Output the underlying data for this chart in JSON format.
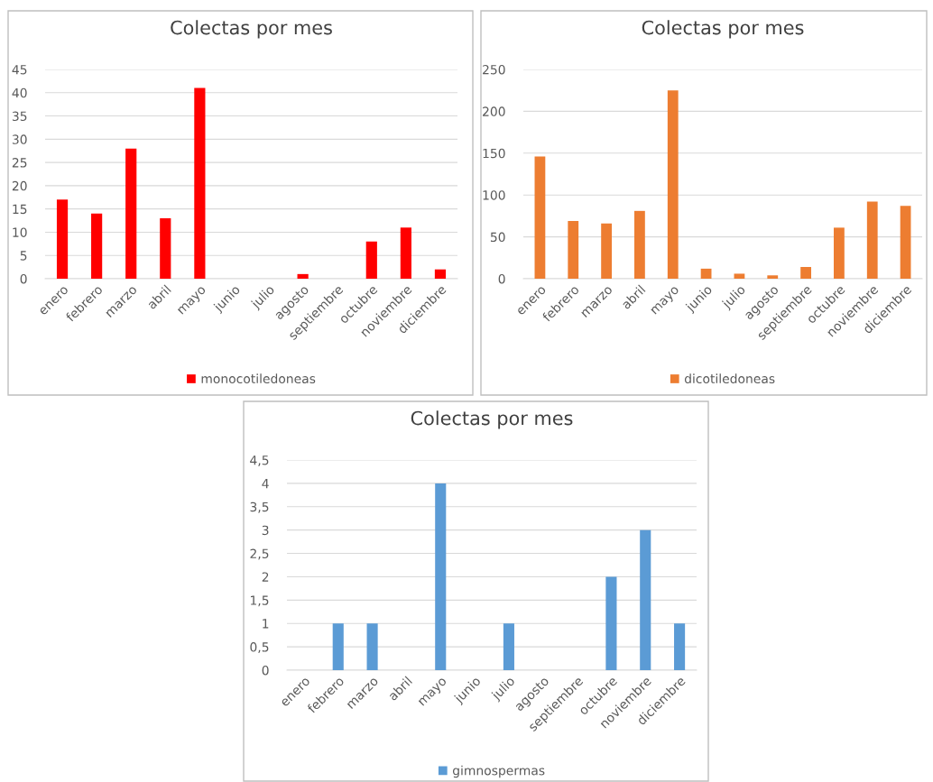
{
  "chart_data": [
    {
      "type": "bar",
      "title": "Colectas por mes",
      "categories": [
        "enero",
        "febrero",
        "marzo",
        "abril",
        "mayo",
        "junio",
        "julio",
        "agosto",
        "septiembre",
        "octubre",
        "noviembre",
        "diciembre"
      ],
      "series": [
        {
          "name": "monocotiledoneas",
          "color": "#ff0000",
          "values": [
            17,
            14,
            28,
            13,
            41,
            null,
            null,
            1,
            null,
            8,
            11,
            2
          ]
        }
      ],
      "ylim": [
        0,
        45
      ],
      "yticks": [
        0,
        5,
        10,
        15,
        20,
        25,
        30,
        35,
        40,
        45
      ],
      "grid": "y",
      "legend": "bottom"
    },
    {
      "type": "bar",
      "title": "Colectas por mes",
      "categories": [
        "enero",
        "febrero",
        "marzo",
        "abril",
        "mayo",
        "junio",
        "julio",
        "agosto",
        "septiembre",
        "octubre",
        "noviembre",
        "diciembre"
      ],
      "series": [
        {
          "name": "dicotiledoneas",
          "color": "#ed7d31",
          "values": [
            146,
            69,
            66,
            81,
            225,
            12,
            6,
            4,
            14,
            61,
            92,
            87
          ]
        }
      ],
      "ylim": [
        0,
        250
      ],
      "yticks": [
        0,
        50,
        100,
        150,
        200,
        250
      ],
      "grid": "y",
      "legend": "bottom"
    },
    {
      "type": "bar",
      "title": "Colectas por mes",
      "categories": [
        "enero",
        "febrero",
        "marzo",
        "abril",
        "mayo",
        "junio",
        "julio",
        "agosto",
        "septiembre",
        "octubre",
        "noviembre",
        "diciembre"
      ],
      "series": [
        {
          "name": "gimnospermas",
          "color": "#5b9bd5",
          "values": [
            null,
            1,
            1,
            null,
            4,
            null,
            1,
            null,
            null,
            2,
            3,
            1
          ]
        }
      ],
      "ylim": [
        0,
        4.5
      ],
      "yticks": [
        0,
        {
          "value": 0.5,
          "label": "0,5"
        },
        1,
        {
          "value": 1.5,
          "label": "1,5"
        },
        2,
        {
          "value": 2.5,
          "label": "2,5"
        },
        3,
        {
          "value": 3.5,
          "label": "3,5"
        },
        4,
        {
          "value": 4.5,
          "label": "4,5"
        }
      ],
      "grid": "y",
      "legend": "bottom"
    }
  ]
}
